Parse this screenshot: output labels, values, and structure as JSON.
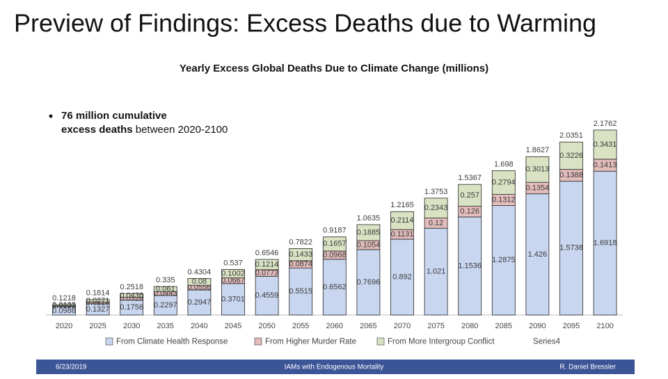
{
  "slide_title": "Preview of Findings: Excess Deaths due to Warming",
  "bullet": {
    "bold": "76 million cumulative excess deaths",
    "text": "between 2020-2100"
  },
  "footer": {
    "date": "6/23/2019",
    "title": "IAMs with Endogenous Mortality",
    "author": "R. Daniel Bressler"
  },
  "chart_data": {
    "type": "bar",
    "stacked": true,
    "title": "Yearly Excess Global Deaths Due to Climate Change (millions)",
    "categories": [
      "2020",
      "2025",
      "2030",
      "2035",
      "2040",
      "2045",
      "2050",
      "2055",
      "2060",
      "2065",
      "2070",
      "2075",
      "2080",
      "2085",
      "2090",
      "2095",
      "2100"
    ],
    "series": [
      {
        "name": "From Climate Health Response",
        "color": "#c9d6f0",
        "values": [
          0.0986,
          0.1327,
          0.1756,
          0.2297,
          0.2947,
          0.3701,
          0.4559,
          0.5515,
          0.6562,
          0.7696,
          0.892,
          1.021,
          1.1536,
          1.2875,
          1.426,
          1.5738,
          1.6918
        ]
      },
      {
        "name": "From Higher Murder Rate",
        "color": "#e3bcbc",
        "values": [
          0.0099,
          0.0216,
          0.0326,
          0.0443,
          0.0556,
          0.0667,
          0.0773,
          0.0874,
          0.0968,
          0.1054,
          0.1131,
          0.12,
          0.126,
          0.1312,
          0.1354,
          0.1388,
          0.1413
        ]
      },
      {
        "name": "From More Intergroup Conflict",
        "color": "#d9e3c4",
        "values": [
          0.0133,
          0.0271,
          0.0436,
          0.061,
          0.08,
          0.1002,
          0.1214,
          0.1433,
          0.1657,
          0.1885,
          0.2114,
          0.2343,
          0.257,
          0.2794,
          0.3013,
          0.3226,
          0.3431
        ]
      },
      {
        "name": "Series4",
        "values": [
          0.1218,
          0.1814,
          0.2518,
          0.335,
          0.4304,
          0.537,
          0.6546,
          0.7822,
          0.9187,
          1.0635,
          1.2165,
          1.3753,
          1.5367,
          1.698,
          1.8627,
          2.0351,
          2.1762
        ]
      }
    ]
  }
}
